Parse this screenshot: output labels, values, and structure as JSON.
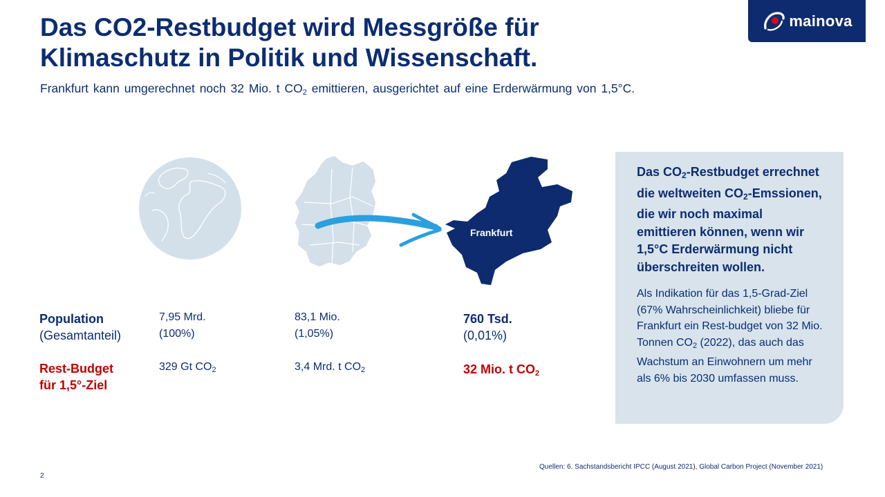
{
  "title": {
    "line1": "Das CO2-Restbudget wird Messgröße für",
    "line2": "Klimaschutz in Politik und Wissenschaft."
  },
  "subtitle": {
    "text_before": "Frankfurt kann umgerechnet noch 32 Mio. t CO",
    "sub": "2",
    "text_after": " emittieren, ausgerichtet auf eine Erderwärmung von 1,5°C."
  },
  "logo": {
    "text": "mainova"
  },
  "map": {
    "city_label": "Frankfurt"
  },
  "rows": {
    "population": {
      "label": "Population",
      "sublabel": "(Gesamtanteil)"
    },
    "budget": {
      "label1": "Rest-Budget",
      "label2": "für 1,5°-Ziel"
    }
  },
  "columns": {
    "world": {
      "population": "7,95 Mrd.",
      "share": "(100%)",
      "budget": "329 Gt CO",
      "budget_sub": "2"
    },
    "germany": {
      "population": "83,1 Mio.",
      "share": "(1,05%)",
      "budget": "3,4 Mrd. t CO",
      "budget_sub": "2"
    },
    "frankfurt": {
      "population": "760 Tsd.",
      "share": "(0,01%)",
      "budget": "32 Mio. t CO",
      "budget_sub": "2"
    }
  },
  "info_box": {
    "head_1": "Das CO",
    "head_sub1": "2",
    "head_2": "-Restbudget errechnet die weltweiten CO",
    "head_sub2": "2",
    "head_3": "-Emssionen, die wir noch maximal emittieren können, wenn wir 1,5°C Erderwärmung nicht überschreiten wollen.",
    "body_1": "Als Indikation für das 1,5-Grad-Ziel (67% Wahrscheinlichkeit) bliebe für Frankfurt ein Rest-budget von 32 Mio. Tonnen CO",
    "body_sub": "2",
    "body_2": " (2022), das auch das Wachstum an Einwohnern um mehr als 6% bis 2030 umfassen muss."
  },
  "source": "Quellen: 6. Sachstandsbericht IPCC (August 2021), Global Carbon Project (November 2021)",
  "page_number": "2",
  "colors": {
    "navy": "#0c2d72",
    "red": "#c00000",
    "light_blue": "#d8e3ec",
    "arrow": "#2aa0de"
  }
}
